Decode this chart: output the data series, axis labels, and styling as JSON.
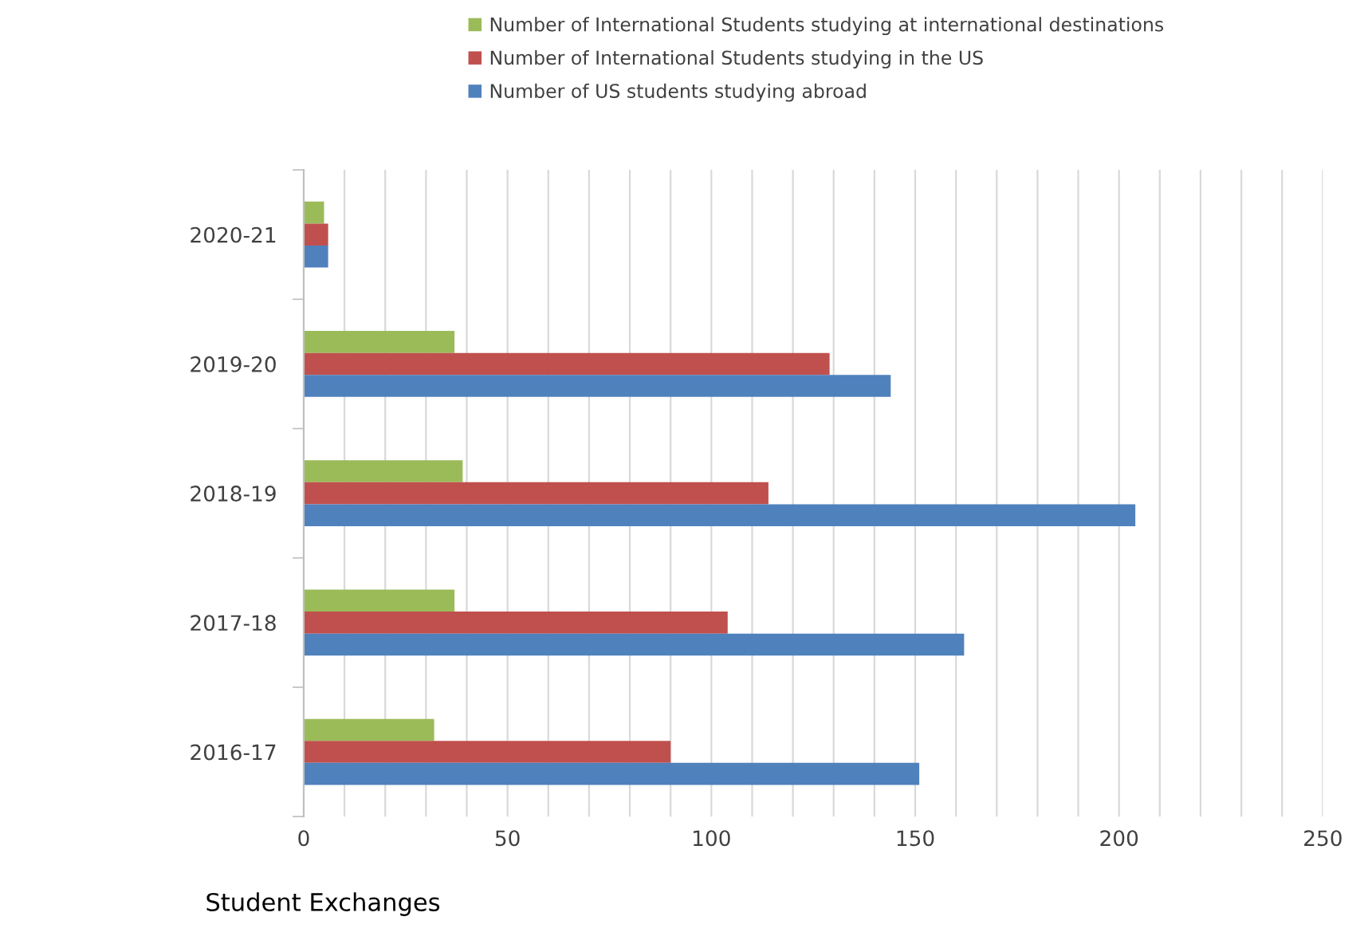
{
  "chart_data": {
    "type": "bar",
    "orientation": "horizontal",
    "categories": [
      "2020-21",
      "2019-20",
      "2018-19",
      "2017-18",
      "2016-17"
    ],
    "series": [
      {
        "name": "Number of International Students studying at international destinations",
        "color": "#9bbb59",
        "values": [
          5,
          37,
          39,
          37,
          32
        ]
      },
      {
        "name": "Number of International Students studying in the US",
        "color": "#c0504d",
        "values": [
          6,
          129,
          114,
          104,
          90
        ]
      },
      {
        "name": "Number of US students studying abroad",
        "color": "#4f81bd",
        "values": [
          6,
          144,
          204,
          162,
          151
        ]
      }
    ],
    "xlim": [
      0,
      250
    ],
    "xticks": [
      0,
      {
        "value": 10,
        "label": null
      },
      {
        "value": 20,
        "label": null
      },
      {
        "value": 30,
        "label": null
      },
      {
        "value": 40,
        "label": null
      },
      50,
      {
        "value": 60,
        "label": null
      },
      {
        "value": 70,
        "label": null
      },
      {
        "value": 80,
        "label": null
      },
      {
        "value": 90,
        "label": null
      },
      100,
      {
        "value": 110,
        "label": null
      },
      {
        "value": 120,
        "label": null
      },
      {
        "value": 130,
        "label": null
      },
      {
        "value": 140,
        "label": null
      },
      150,
      {
        "value": 160,
        "label": null
      },
      {
        "value": 170,
        "label": null
      },
      {
        "value": 180,
        "label": null
      },
      {
        "value": 190,
        "label": null
      },
      200,
      {
        "value": 210,
        "label": null
      },
      {
        "value": 220,
        "label": null
      },
      {
        "value": 230,
        "label": null
      },
      {
        "value": 240,
        "label": null
      },
      250
    ],
    "grid": "x",
    "legend": "top",
    "annotations": [
      "Student Exchanges"
    ]
  }
}
